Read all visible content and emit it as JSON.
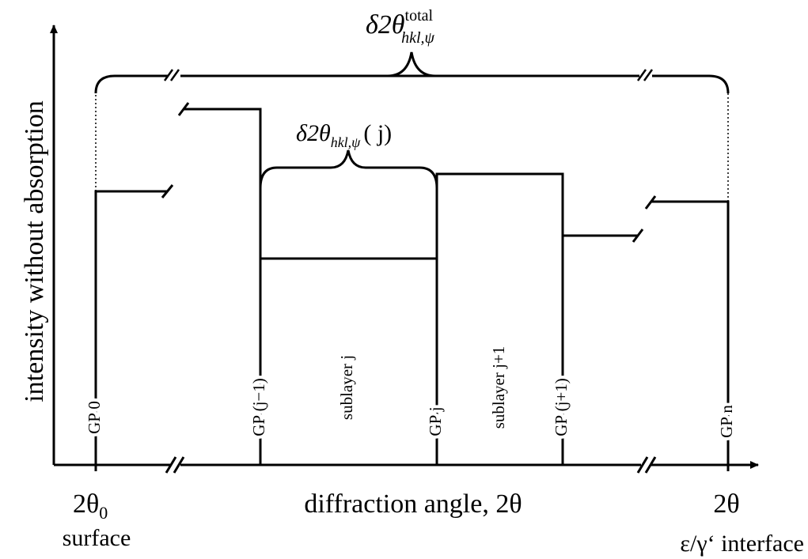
{
  "y_axis_label": "intensity without absorption",
  "x_axis_label": "diffraction angle, 2θ",
  "left_angle": {
    "main": "2θ",
    "sub": "0"
  },
  "left_caption": "surface",
  "right_angle": "2θ",
  "right_caption": "ε/γ‘ interface",
  "total_label": {
    "main": "δ2θ",
    "sub": "hkl,ψ",
    "sup": "total"
  },
  "sublayer_label": {
    "main": "δ2θ",
    "sub": "hkl,ψ",
    "arg": "( j)"
  },
  "positions": [
    "GP 0",
    "GP (j−1)",
    "sublayer j",
    "GP j",
    "sublayer j+1",
    "GP (j+1)",
    "GP n"
  ]
}
